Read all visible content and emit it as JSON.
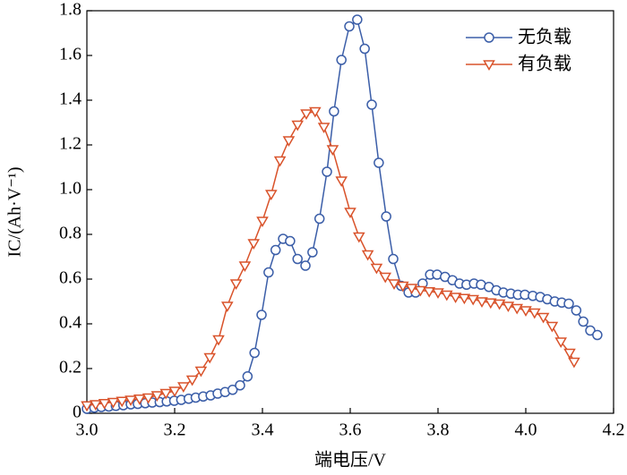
{
  "chart_data": {
    "type": "line",
    "xlabel": "端电压/V",
    "ylabel": "IC/(Ah·V⁻¹)",
    "xlim": [
      3.0,
      4.2
    ],
    "ylim": [
      0,
      1.8
    ],
    "xticks": [
      {
        "value": 3.0,
        "label": "3.0"
      },
      3.2,
      3.4,
      3.6,
      3.8,
      {
        "value": 4.0,
        "label": "4.0"
      },
      4.2
    ],
    "yticks": [
      0,
      0.2,
      0.4,
      0.6,
      0.8,
      {
        "value": 1.0,
        "label": "1.0"
      },
      1.2,
      1.4,
      1.6,
      1.8
    ],
    "legend": "upper right",
    "series": [
      {
        "name": "无负载",
        "color": "#3b5ea8",
        "marker": "circle",
        "x": [
          3.0,
          3.017,
          3.033,
          3.05,
          3.066,
          3.083,
          3.1,
          3.116,
          3.133,
          3.149,
          3.166,
          3.182,
          3.199,
          3.215,
          3.232,
          3.248,
          3.265,
          3.282,
          3.298,
          3.315,
          3.332,
          3.349,
          3.366,
          3.382,
          3.398,
          3.414,
          3.43,
          3.447,
          3.463,
          3.48,
          3.498,
          3.514,
          3.53,
          3.547,
          3.563,
          3.58,
          3.598,
          3.616,
          3.633,
          3.649,
          3.665,
          3.682,
          3.698,
          3.716,
          3.733,
          3.749,
          3.765,
          3.782,
          3.798,
          3.816,
          3.833,
          3.849,
          3.865,
          3.882,
          3.898,
          3.916,
          3.933,
          3.949,
          3.966,
          3.982,
          3.998,
          4.016,
          4.033,
          4.049,
          4.066,
          4.082,
          4.098,
          4.115,
          4.131,
          4.147,
          4.163
        ],
        "values": [
          0.02,
          0.025,
          0.028,
          0.03,
          0.033,
          0.036,
          0.04,
          0.042,
          0.045,
          0.048,
          0.05,
          0.053,
          0.056,
          0.06,
          0.065,
          0.07,
          0.075,
          0.08,
          0.088,
          0.095,
          0.105,
          0.125,
          0.165,
          0.27,
          0.44,
          0.63,
          0.73,
          0.78,
          0.77,
          0.69,
          0.66,
          0.72,
          0.87,
          1.08,
          1.35,
          1.58,
          1.73,
          1.76,
          1.63,
          1.38,
          1.12,
          0.88,
          0.69,
          0.57,
          0.54,
          0.54,
          0.58,
          0.62,
          0.62,
          0.61,
          0.595,
          0.58,
          0.575,
          0.58,
          0.575,
          0.565,
          0.55,
          0.54,
          0.535,
          0.53,
          0.53,
          0.525,
          0.52,
          0.51,
          0.5,
          0.495,
          0.49,
          0.46,
          0.41,
          0.37,
          0.35
        ]
      },
      {
        "name": "有负载",
        "color": "#d9532b",
        "marker": "triangle-down",
        "x": [
          3.0,
          3.02,
          3.04,
          3.06,
          3.08,
          3.1,
          3.12,
          3.14,
          3.16,
          3.18,
          3.2,
          3.22,
          3.24,
          3.26,
          3.28,
          3.3,
          3.32,
          3.34,
          3.36,
          3.38,
          3.4,
          3.42,
          3.44,
          3.46,
          3.48,
          3.5,
          3.52,
          3.54,
          3.56,
          3.58,
          3.6,
          3.62,
          3.64,
          3.66,
          3.68,
          3.7,
          3.72,
          3.74,
          3.76,
          3.78,
          3.8,
          3.82,
          3.84,
          3.86,
          3.88,
          3.9,
          3.92,
          3.94,
          3.96,
          3.98,
          4.0,
          4.02,
          4.04,
          4.06,
          4.08,
          4.1,
          4.11
        ],
        "values": [
          0.035,
          0.04,
          0.045,
          0.05,
          0.055,
          0.06,
          0.065,
          0.07,
          0.08,
          0.09,
          0.1,
          0.12,
          0.15,
          0.19,
          0.25,
          0.33,
          0.48,
          0.58,
          0.66,
          0.76,
          0.86,
          0.98,
          1.13,
          1.22,
          1.29,
          1.34,
          1.35,
          1.28,
          1.18,
          1.04,
          0.9,
          0.79,
          0.71,
          0.65,
          0.61,
          0.58,
          0.57,
          0.56,
          0.55,
          0.545,
          0.54,
          0.53,
          0.52,
          0.515,
          0.51,
          0.5,
          0.495,
          0.49,
          0.48,
          0.47,
          0.46,
          0.45,
          0.43,
          0.39,
          0.32,
          0.27,
          0.23
        ]
      }
    ]
  }
}
